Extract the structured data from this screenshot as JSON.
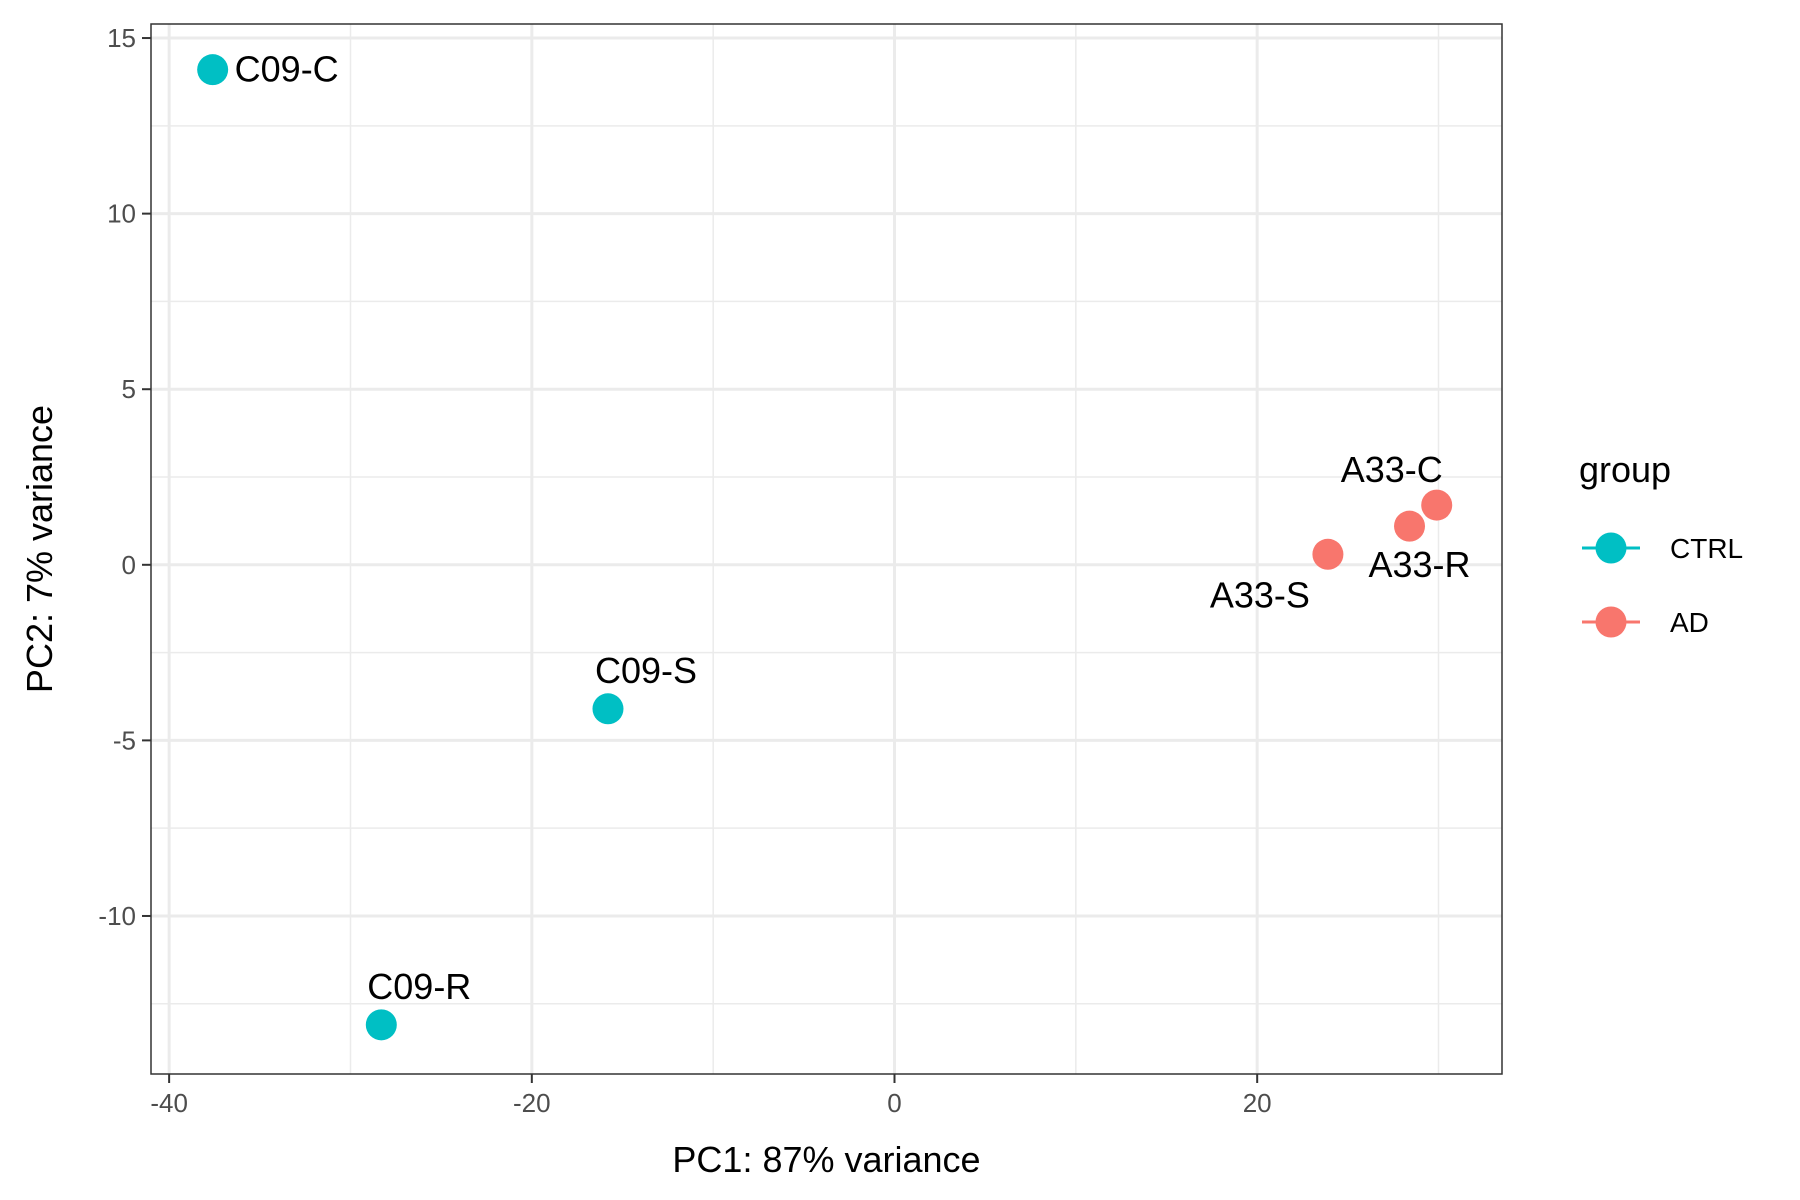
{
  "chart_data": {
    "type": "scatter",
    "xlabel": "PC1: 87% variance",
    "ylabel": "PC2: 7% variance",
    "xlim": [
      -41,
      33.5
    ],
    "ylim": [
      -14.5,
      15.4
    ],
    "x_ticks": [
      -40,
      -20,
      0,
      20
    ],
    "y_ticks": [
      -10,
      -5,
      0,
      5,
      10,
      15
    ],
    "x_minor_ticks": [
      -30,
      -10,
      10,
      30
    ],
    "y_minor_ticks": [
      -12.5,
      -7.5,
      -2.5,
      2.5,
      7.5,
      12.5
    ],
    "grid": true,
    "legend": {
      "title": "group",
      "position": "right",
      "entries": [
        {
          "name": "CTRL",
          "color": "#00BFC4"
        },
        {
          "name": "AD",
          "color": "#F8766D"
        }
      ]
    },
    "series": [
      {
        "name": "CTRL",
        "color": "#00BFC4",
        "points": [
          {
            "label": "C09-C",
            "x": -37.6,
            "y": 14.1,
            "label_pos": "right"
          },
          {
            "label": "C09-S",
            "x": -15.8,
            "y": -4.1,
            "label_pos": "above"
          },
          {
            "label": "C09-R",
            "x": -28.3,
            "y": -13.1,
            "label_pos": "above"
          }
        ]
      },
      {
        "name": "AD",
        "color": "#F8766D",
        "points": [
          {
            "label": "A33-C",
            "x": 29.9,
            "y": 1.7,
            "label_pos": "above-left"
          },
          {
            "label": "A33-R",
            "x": 28.4,
            "y": 1.1,
            "label_pos": "below-right"
          },
          {
            "label": "A33-S",
            "x": 23.9,
            "y": 0.3,
            "label_pos": "below-left"
          }
        ]
      }
    ]
  }
}
